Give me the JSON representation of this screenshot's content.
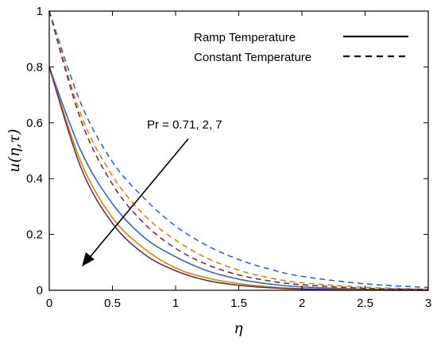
{
  "chart_data": {
    "type": "line",
    "xlabel": "η",
    "ylabel": "u(η,τ)",
    "xlim": [
      0,
      3
    ],
    "ylim": [
      0,
      1
    ],
    "xticks": [
      "0",
      "0.5",
      "1",
      "1.5",
      "2",
      "2.5",
      "3"
    ],
    "yticks": [
      "0",
      "0.2",
      "0.4",
      "0.6",
      "0.8",
      "1"
    ],
    "grid": false,
    "legend_placement": "top-right",
    "legend": [
      {
        "label": "Ramp Temperature",
        "style": "solid"
      },
      {
        "label": "Constant Temperature",
        "style": "dashed"
      }
    ],
    "annotation": "Pr = 0.71, 2, 7",
    "x": [
      0,
      0.25,
      0.5,
      0.75,
      1.0,
      1.25,
      1.5,
      1.75,
      2.0,
      2.5,
      3.0
    ],
    "series": [
      {
        "group": "Ramp Temperature",
        "color": "#3366cc",
        "style": "solid",
        "values": [
          0.8,
          0.5,
          0.31,
          0.19,
          0.12,
          0.07,
          0.04,
          0.022,
          0.012,
          0.004,
          0.001
        ]
      },
      {
        "group": "Ramp Temperature",
        "color": "#cc8a00",
        "style": "solid",
        "values": [
          0.8,
          0.46,
          0.26,
          0.15,
          0.08,
          0.044,
          0.024,
          0.012,
          0.006,
          0.002,
          0.0
        ]
      },
      {
        "group": "Ramp Temperature",
        "color": "#6b2b57",
        "style": "solid",
        "values": [
          0.8,
          0.44,
          0.24,
          0.13,
          0.07,
          0.035,
          0.018,
          0.009,
          0.004,
          0.001,
          0.0
        ]
      },
      {
        "group": "Constant Temperature",
        "color": "#3366cc",
        "style": "dashed",
        "values": [
          1.0,
          0.67,
          0.46,
          0.33,
          0.23,
          0.16,
          0.11,
          0.075,
          0.05,
          0.023,
          0.01
        ]
      },
      {
        "group": "Constant Temperature",
        "color": "#cc8a00",
        "style": "dashed",
        "values": [
          1.0,
          0.63,
          0.41,
          0.27,
          0.18,
          0.115,
          0.072,
          0.044,
          0.027,
          0.011,
          0.004
        ]
      },
      {
        "group": "Constant Temperature",
        "color": "#6b2b57",
        "style": "dashed",
        "values": [
          1.0,
          0.61,
          0.38,
          0.24,
          0.15,
          0.092,
          0.055,
          0.033,
          0.02,
          0.007,
          0.003
        ]
      }
    ]
  },
  "colors": {
    "axis": "#000000",
    "arrow": "#000000"
  }
}
